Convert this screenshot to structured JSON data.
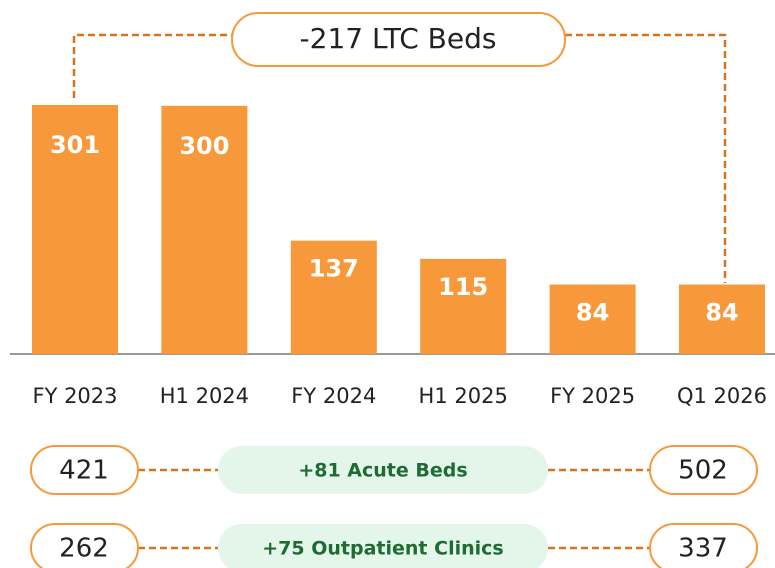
{
  "chart_data": {
    "type": "bar",
    "categories": [
      "FY 2023",
      "H1 2024",
      "FY 2024",
      "H1 2025",
      "FY 2025",
      "Q1 2026"
    ],
    "values": [
      301,
      300,
      137,
      115,
      84,
      84
    ],
    "color": "#f7993a",
    "annotation": "-217 LTC Beds",
    "comparisons": [
      {
        "from": 421,
        "label": "+81 Acute Beds",
        "to": 502
      },
      {
        "from": 262,
        "label": "+75 Outpatient Clinics",
        "to": 337
      }
    ]
  }
}
